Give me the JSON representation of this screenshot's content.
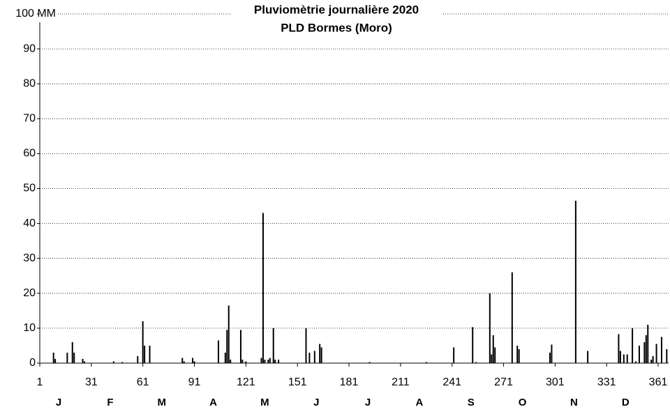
{
  "chart_data": {
    "type": "bar",
    "title": "Pluviomètrie journalière 2020",
    "subtitle": "PLD Bormes (Moro)",
    "x": [
      9,
      10,
      17,
      20,
      21,
      26,
      27,
      44,
      49,
      58,
      61,
      62,
      65,
      84,
      85,
      90,
      91,
      105,
      109,
      110,
      111,
      112,
      118,
      119,
      121,
      130,
      131,
      132,
      134,
      135,
      137,
      138,
      140,
      156,
      158,
      161,
      164,
      165,
      193,
      226,
      242,
      253,
      255,
      263,
      264,
      265,
      266,
      276,
      279,
      280,
      298,
      299,
      313,
      320,
      338,
      339,
      341,
      343,
      346,
      348,
      350,
      353,
      354,
      355,
      357,
      358,
      360,
      363,
      366
    ],
    "values": [
      3,
      1.2,
      3,
      6,
      3,
      1.2,
      0.5,
      0.5,
      0.3,
      2,
      12,
      5,
      5,
      1.5,
      0.5,
      1.5,
      0.5,
      6.5,
      3,
      9.5,
      16.5,
      1,
      9.5,
      1,
      0.5,
      1.5,
      43,
      1,
      1,
      1.5,
      10,
      1,
      1,
      10,
      3,
      3.5,
      5.5,
      4.5,
      0.3,
      0.3,
      4.5,
      10.3,
      0.3,
      20,
      2.5,
      8,
      4.5,
      26,
      5,
      4,
      3,
      5.3,
      46.5,
      3.5,
      8.3,
      3.5,
      2.5,
      2.5,
      10,
      0.5,
      5,
      6,
      8,
      11,
      1,
      2,
      5.5,
      7.5,
      4
    ],
    "color": "#000000",
    "xlim": [
      1,
      367
    ],
    "xticks": [
      1,
      31,
      61,
      91,
      121,
      151,
      181,
      211,
      241,
      271,
      301,
      331,
      361
    ],
    "ylim": [
      0,
      100
    ],
    "yticks": [
      0,
      10,
      20,
      30,
      40,
      50,
      60,
      70,
      80,
      90,
      {
        "value": 100,
        "label": "100 MM"
      }
    ],
    "grid": true,
    "month_labels": [
      "J",
      "F",
      "M",
      "A",
      "M",
      "J",
      "J",
      "A",
      "S",
      "O",
      "N",
      "D"
    ]
  }
}
